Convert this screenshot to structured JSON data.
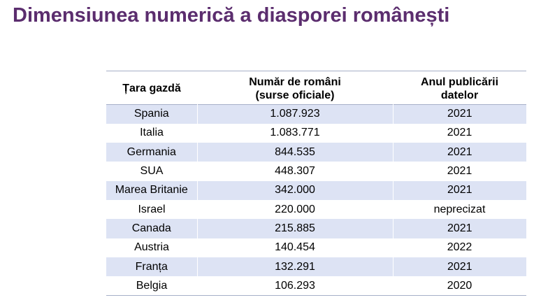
{
  "title": "Dimensiunea numerică a diasporei românești",
  "table": {
    "headers": {
      "country": [
        "Țara gazdă"
      ],
      "count": [
        "Număr de români",
        "(surse oficiale)"
      ],
      "year": [
        "Anul publicării",
        "datelor"
      ]
    },
    "rows": [
      {
        "country": "Spania",
        "count": "1.087.923",
        "year": "2021"
      },
      {
        "country": "Italia",
        "count": "1.083.771",
        "year": "2021"
      },
      {
        "country": "Germania",
        "count": "844.535",
        "year": "2021"
      },
      {
        "country": "SUA",
        "count": "448.307",
        "year": "2021"
      },
      {
        "country": "Marea Britanie",
        "count": "342.000",
        "year": "2021"
      },
      {
        "country": "Israel",
        "count": "220.000",
        "year": "neprecizat"
      },
      {
        "country": "Canada",
        "count": "215.885",
        "year": "2021"
      },
      {
        "country": "Austria",
        "count": "140.454",
        "year": "2022"
      },
      {
        "country": "Franța",
        "count": "132.291",
        "year": "2021"
      },
      {
        "country": "Belgia",
        "count": "106.293",
        "year": "2020"
      }
    ]
  }
}
